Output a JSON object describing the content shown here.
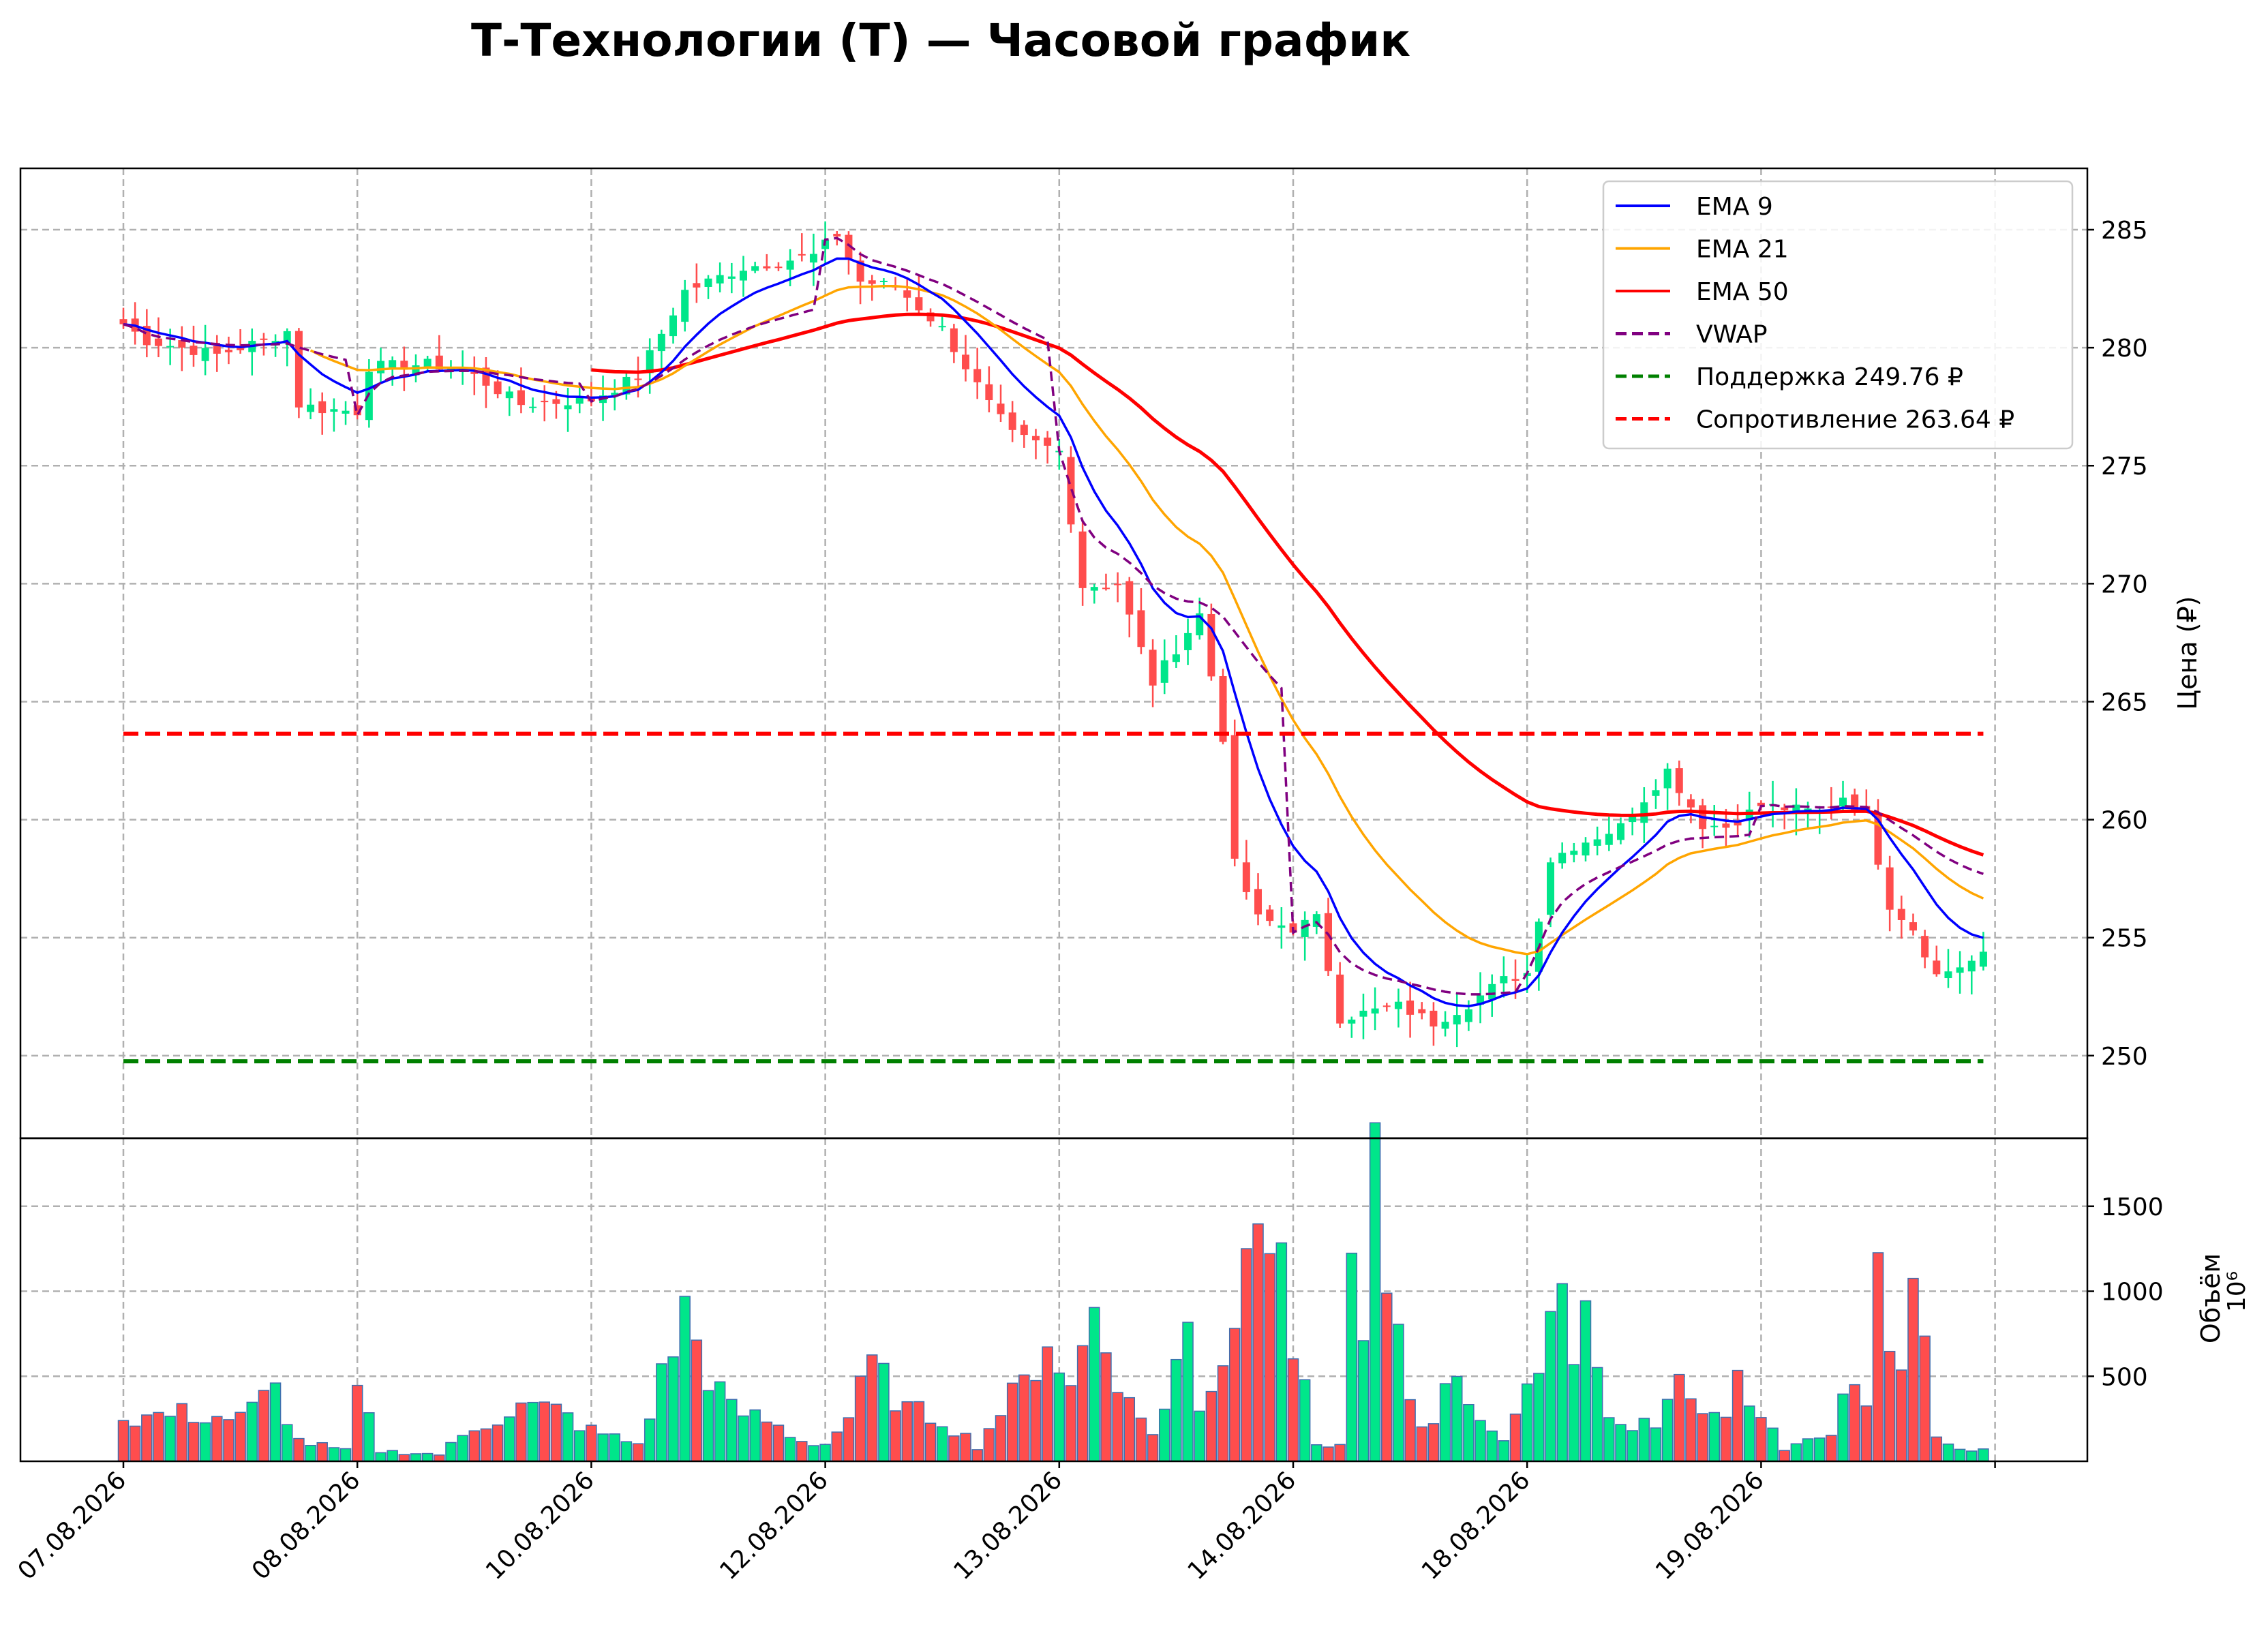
{
  "chart_data": {
    "type": "line",
    "title": "Т-Технологии (T) — Часовой график",
    "price_ylabel": "Цена (₽)",
    "volume_ylabel": "Объём",
    "volume_multiplier": "10⁶",
    "price_ylim": [
      246.5,
      287.6
    ],
    "price_ticks": [
      250,
      255,
      260,
      265,
      270,
      275,
      280,
      285
    ],
    "volume_ylim": [
      0,
      1900
    ],
    "volume_ticks": [
      500,
      1000,
      1500
    ],
    "x_tick_labels": [
      "07.08.2026",
      "08.08.2026",
      "10.08.2026",
      "12.08.2026",
      "13.08.2026",
      "14.08.2026",
      "18.08.2026",
      "19.08.2026"
    ],
    "x_tick_bars": [
      0,
      20,
      40,
      60,
      80,
      100,
      120,
      140
    ],
    "bar_count": 160,
    "grid": true,
    "legend_position": "top-right",
    "support": {
      "label": "Поддержка 249.76 ₽",
      "value": 249.76,
      "color": "#008000"
    },
    "resistance": {
      "label": "Сопротивление 263.64 ₽",
      "value": 263.64,
      "color": "#ff0000"
    },
    "colors": {
      "up": "#00e68a",
      "down": "#ff4d4d",
      "ema9": "#0000ff",
      "ema21": "#ffa500",
      "ema50": "#ff0000",
      "vwap": "#800080",
      "vol_edge": "#3f6fb0"
    },
    "close_keypoints": [
      [
        0,
        281.0
      ],
      [
        2,
        280.3
      ],
      [
        5,
        280.0
      ],
      [
        8,
        279.7
      ],
      [
        12,
        280.3
      ],
      [
        14,
        280.7
      ],
      [
        15,
        277.6
      ],
      [
        17,
        277.4
      ],
      [
        20,
        277.3
      ],
      [
        21,
        279.2
      ],
      [
        26,
        279.3
      ],
      [
        29,
        279.1
      ],
      [
        34,
        277.6
      ],
      [
        40,
        277.8
      ],
      [
        44,
        278.8
      ],
      [
        48,
        282.4
      ],
      [
        53,
        283.4
      ],
      [
        59,
        283.9
      ],
      [
        61,
        284.8
      ],
      [
        63,
        282.8
      ],
      [
        66,
        282.6
      ],
      [
        70,
        280.8
      ],
      [
        74,
        277.6
      ],
      [
        76,
        276.3
      ],
      [
        80,
        275.6
      ],
      [
        82,
        269.9
      ],
      [
        85,
        270.0
      ],
      [
        88,
        265.8
      ],
      [
        92,
        268.7
      ],
      [
        94,
        263.5
      ],
      [
        95,
        258.1
      ],
      [
        97,
        255.8
      ],
      [
        100,
        255.4
      ],
      [
        102,
        255.8
      ],
      [
        104,
        251.6
      ],
      [
        107,
        251.9
      ],
      [
        109,
        252.1
      ],
      [
        112,
        251.4
      ],
      [
        115,
        252.2
      ],
      [
        118,
        253.2
      ],
      [
        120,
        253.5
      ],
      [
        122,
        258.3
      ],
      [
        124,
        258.9
      ],
      [
        128,
        259.7
      ],
      [
        132,
        262.1
      ],
      [
        135,
        259.8
      ],
      [
        137,
        259.7
      ],
      [
        140,
        260.6
      ],
      [
        145,
        260.3
      ],
      [
        147,
        261.0
      ],
      [
        149,
        260.2
      ],
      [
        151,
        256.4
      ],
      [
        153,
        255.4
      ],
      [
        155,
        253.4
      ],
      [
        159,
        254.2
      ]
    ],
    "volume_keypoints": [
      [
        0,
        250
      ],
      [
        5,
        280
      ],
      [
        10,
        250
      ],
      [
        13,
        420
      ],
      [
        15,
        120
      ],
      [
        19,
        60
      ],
      [
        20,
        410
      ],
      [
        22,
        60
      ],
      [
        27,
        40
      ],
      [
        30,
        200
      ],
      [
        34,
        320
      ],
      [
        37,
        300
      ],
      [
        40,
        180
      ],
      [
        44,
        100
      ],
      [
        46,
        490
      ],
      [
        48,
        880
      ],
      [
        50,
        520
      ],
      [
        52,
        300
      ],
      [
        55,
        240
      ],
      [
        58,
        120
      ],
      [
        60,
        100
      ],
      [
        62,
        260
      ],
      [
        64,
        560
      ],
      [
        67,
        300
      ],
      [
        70,
        250
      ],
      [
        73,
        90
      ],
      [
        75,
        300
      ],
      [
        77,
        450
      ],
      [
        79,
        740
      ],
      [
        81,
        420
      ],
      [
        83,
        910
      ],
      [
        86,
        330
      ],
      [
        88,
        180
      ],
      [
        89,
        300
      ],
      [
        91,
        800
      ],
      [
        92,
        340
      ],
      [
        94,
        600
      ],
      [
        96,
        1180
      ],
      [
        97,
        1700
      ],
      [
        99,
        1500
      ],
      [
        100,
        680
      ],
      [
        102,
        100
      ],
      [
        104,
        100
      ],
      [
        105,
        1100
      ],
      [
        106,
        800
      ],
      [
        107,
        1600
      ],
      [
        108,
        1000
      ],
      [
        110,
        300
      ],
      [
        112,
        200
      ],
      [
        114,
        640
      ],
      [
        115,
        280
      ],
      [
        118,
        100
      ],
      [
        119,
        300
      ],
      [
        121,
        600
      ],
      [
        122,
        1100
      ],
      [
        124,
        660
      ],
      [
        125,
        1020
      ],
      [
        127,
        280
      ],
      [
        129,
        150
      ],
      [
        131,
        260
      ],
      [
        133,
        500
      ],
      [
        135,
        340
      ],
      [
        137,
        240
      ],
      [
        138,
        530
      ],
      [
        140,
        240
      ],
      [
        142,
        80
      ],
      [
        145,
        130
      ],
      [
        146,
        200
      ],
      [
        148,
        550
      ],
      [
        149,
        370
      ],
      [
        150,
        1120
      ],
      [
        152,
        480
      ],
      [
        153,
        1080
      ],
      [
        155,
        120
      ],
      [
        159,
        60
      ]
    ]
  },
  "legend": [
    {
      "label": "EMA 9",
      "color": "#0000ff",
      "dash": "solid"
    },
    {
      "label": "EMA 21",
      "color": "#ffa500",
      "dash": "solid"
    },
    {
      "label": "EMA 50",
      "color": "#ff0000",
      "dash": "solid"
    },
    {
      "label": "VWAP",
      "color": "#800080",
      "dash": "dashed"
    },
    {
      "label": "Поддержка 249.76 ₽",
      "color": "#008000",
      "dash": "dashed"
    },
    {
      "label": "Сопротивление 263.64 ₽",
      "color": "#ff0000",
      "dash": "dashed"
    }
  ]
}
